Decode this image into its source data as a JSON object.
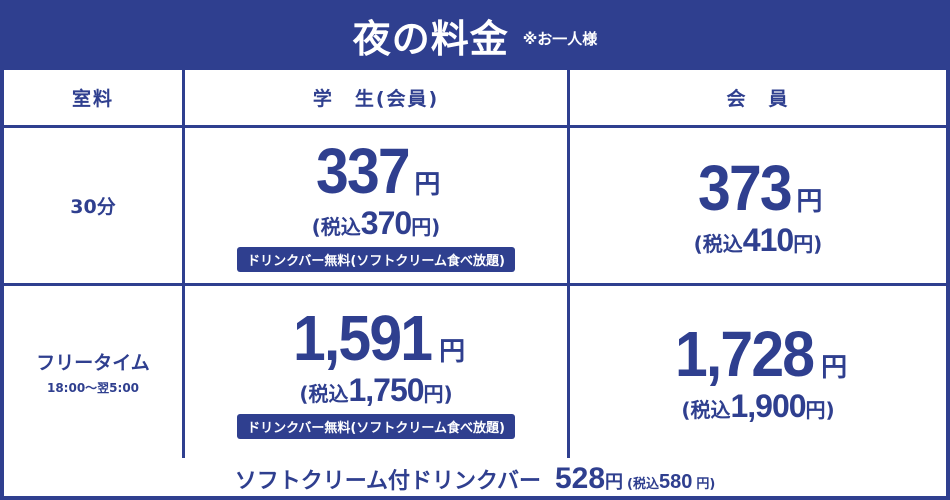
{
  "title": {
    "main": "夜の料金",
    "note": "※お一人様"
  },
  "header": {
    "room": "室料",
    "student": "学　生(会員)",
    "member": "会　員"
  },
  "rows": [
    {
      "label": "30分",
      "sublabel": "",
      "student": {
        "price": "337",
        "yen": "円",
        "taxed_prefix": "(税込",
        "taxed_price": "370",
        "taxed_suffix": "円)",
        "badge": "ドリンクバー無料(ソフトクリーム食べ放題)"
      },
      "member": {
        "price": "373",
        "yen": "円",
        "taxed_prefix": "(税込",
        "taxed_price": "410",
        "taxed_suffix": "円)"
      }
    },
    {
      "label": "フリータイム",
      "sublabel": "18:00〜翌5:00",
      "student": {
        "price": "1,591",
        "yen": "円",
        "taxed_prefix": "(税込",
        "taxed_price": "1,750",
        "taxed_suffix": "円)",
        "badge": "ドリンクバー無料(ソフトクリーム食べ放題)"
      },
      "member": {
        "price": "1,728",
        "yen": "円",
        "taxed_prefix": "(税込",
        "taxed_price": "1,900",
        "taxed_suffix": "円)"
      }
    }
  ],
  "footer": {
    "label": "ソフトクリーム付ドリンクバー",
    "price": "528",
    "yen": "円",
    "taxed_prefix": "(税込",
    "taxed_price": "580",
    "taxed_suffix": "円)"
  },
  "colors": {
    "accent": "#2f3f8f",
    "background": "#ffffff"
  }
}
